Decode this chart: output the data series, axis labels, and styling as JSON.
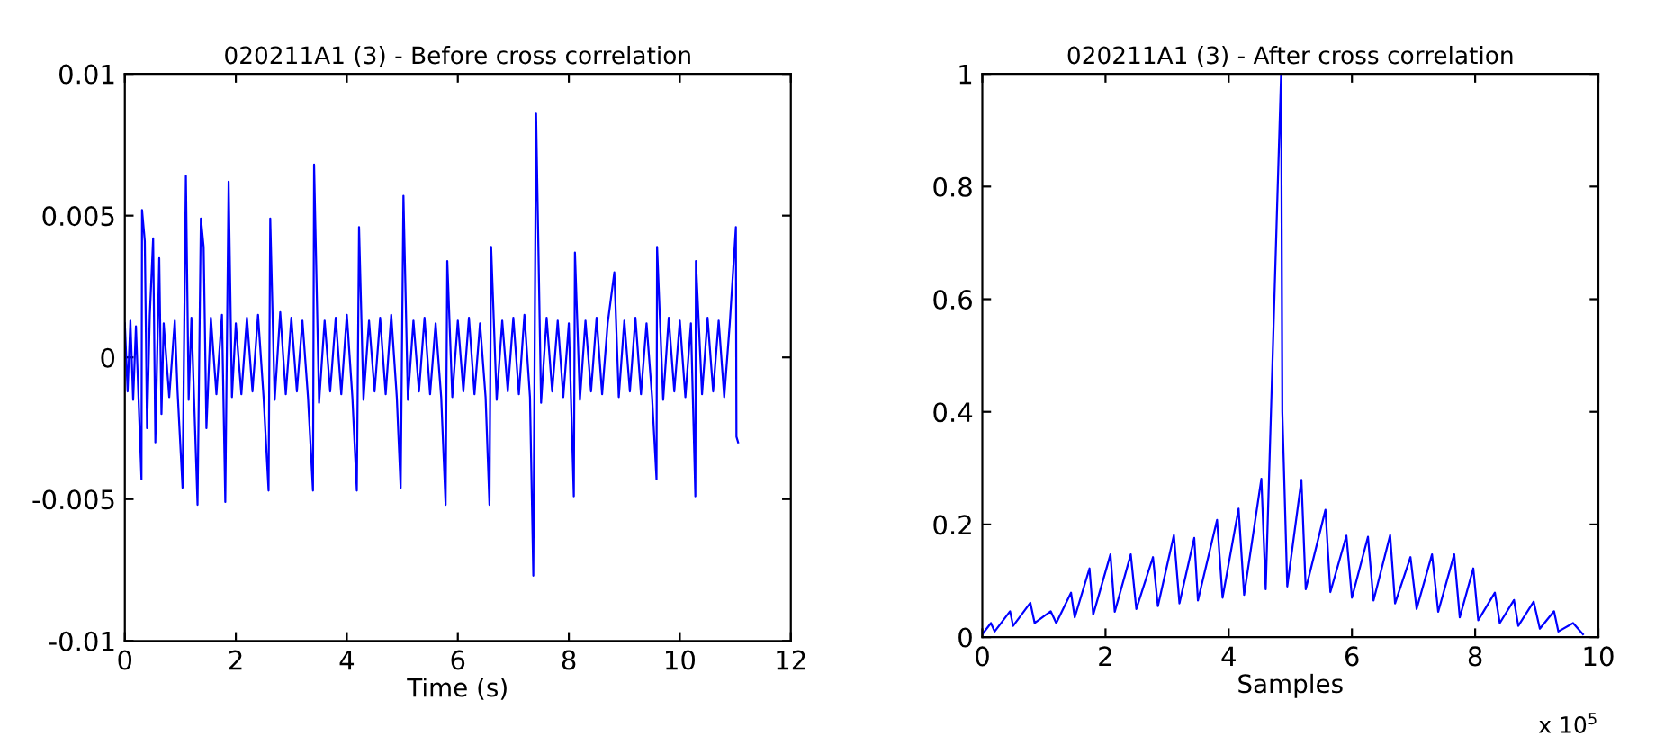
{
  "chart_data": [
    {
      "type": "line",
      "title": "020211A1 (3) - Before cross correlation",
      "xlabel": "Time (s)",
      "xlim": [
        0,
        12
      ],
      "ylim": [
        -0.01,
        0.01
      ],
      "xticks": [
        0,
        2,
        4,
        6,
        8,
        10,
        12
      ],
      "yticks": [
        -0.01,
        -0.005,
        0,
        0.005,
        0.01
      ],
      "x": [
        0,
        0.05,
        0.1,
        0.15,
        0.2,
        0.3,
        0.31,
        0.36,
        0.4,
        0.45,
        0.51,
        0.55,
        0.62,
        0.66,
        0.7,
        0.8,
        0.9,
        0.95,
        1.04,
        1.1,
        1.15,
        1.2,
        1.31,
        1.37,
        1.42,
        1.47,
        1.55,
        1.65,
        1.75,
        1.81,
        1.87,
        1.93,
        2.0,
        2.1,
        2.2,
        2.3,
        2.4,
        2.5,
        2.59,
        2.62,
        2.7,
        2.8,
        2.9,
        3.0,
        3.1,
        3.2,
        3.3,
        3.39,
        3.41,
        3.5,
        3.6,
        3.7,
        3.8,
        3.9,
        4.0,
        4.1,
        4.18,
        4.22,
        4.3,
        4.4,
        4.5,
        4.6,
        4.7,
        4.8,
        4.9,
        4.97,
        5.02,
        5.1,
        5.2,
        5.3,
        5.4,
        5.5,
        5.6,
        5.7,
        5.78,
        5.81,
        5.9,
        6.0,
        6.1,
        6.2,
        6.3,
        6.4,
        6.5,
        6.57,
        6.6,
        6.7,
        6.8,
        6.9,
        7.0,
        7.1,
        7.2,
        7.3,
        7.36,
        7.41,
        7.5,
        7.6,
        7.7,
        7.8,
        7.9,
        8.0,
        8.09,
        8.11,
        8.2,
        8.3,
        8.4,
        8.5,
        8.6,
        8.7,
        8.82,
        8.9,
        9.0,
        9.1,
        9.2,
        9.3,
        9.4,
        9.5,
        9.58,
        9.59,
        9.7,
        9.8,
        9.9,
        10.0,
        10.1,
        10.2,
        10.28,
        10.29,
        10.4,
        10.5,
        10.6,
        10.7,
        10.8,
        10.9,
        11.01,
        11.02,
        11.05
      ],
      "series": [
        {
          "color": "#0000ff",
          "values": [
            0.0012,
            -0.0012,
            0.0013,
            -0.0015,
            0.0011,
            -0.0043,
            0.0052,
            0.0041,
            -0.0025,
            0.0015,
            0.0042,
            -0.003,
            0.0035,
            -0.002,
            0.0012,
            -0.0014,
            0.0013,
            -0.0012,
            -0.0046,
            0.0064,
            -0.0015,
            0.0014,
            -0.0052,
            0.0049,
            0.0039,
            -0.0025,
            0.0014,
            -0.0013,
            0.0015,
            -0.0051,
            0.0062,
            -0.0014,
            0.0012,
            -0.0013,
            0.0014,
            -0.0012,
            0.0015,
            -0.0014,
            -0.0047,
            0.0049,
            -0.0015,
            0.0016,
            -0.0013,
            0.0014,
            -0.0012,
            0.0013,
            -0.0014,
            -0.0047,
            0.0068,
            -0.0016,
            0.0013,
            -0.0012,
            0.0014,
            -0.0013,
            0.0015,
            -0.0014,
            -0.0047,
            0.0046,
            -0.0015,
            0.0013,
            -0.0012,
            0.0014,
            -0.0013,
            0.0015,
            -0.0014,
            -0.0046,
            0.0057,
            -0.0015,
            0.0013,
            -0.0012,
            0.0014,
            -0.0013,
            0.0012,
            -0.0014,
            -0.0052,
            0.0034,
            -0.0014,
            0.0013,
            -0.0012,
            0.0014,
            -0.0013,
            0.0012,
            -0.0014,
            -0.0052,
            0.0039,
            -0.0015,
            0.0013,
            -0.0012,
            0.0014,
            -0.0013,
            0.0015,
            -0.0014,
            -0.0077,
            0.0086,
            -0.0016,
            0.0014,
            -0.0012,
            0.0013,
            -0.0014,
            0.0012,
            -0.0049,
            0.0037,
            -0.0015,
            0.0013,
            -0.0012,
            0.0014,
            -0.0013,
            0.0012,
            0.003,
            -0.0014,
            0.0013,
            -0.0012,
            0.0014,
            -0.0013,
            0.0012,
            -0.0014,
            -0.0043,
            0.0039,
            -0.0015,
            0.0014,
            -0.0012,
            0.0013,
            -0.0014,
            0.0012,
            -0.0049,
            0.0034,
            -0.0013,
            0.0014,
            -0.0012,
            0.0013,
            -0.0014,
            0.0012,
            0.0046,
            -0.0028,
            -0.003
          ]
        }
      ]
    },
    {
      "type": "line",
      "title": "020211A1 (3) - After cross correlation",
      "xlabel": "Samples",
      "annotations": [
        "x 10$^{5}$"
      ],
      "xlim": [
        0,
        10
      ],
      "ylim": [
        0,
        1
      ],
      "xticks": [
        0,
        2,
        4,
        6,
        8,
        10
      ],
      "yticks": [
        0,
        0.2,
        0.4,
        0.6,
        0.8,
        1
      ],
      "x": [
        0,
        0.14,
        0.2,
        0.45,
        0.5,
        0.78,
        0.85,
        1.11,
        1.2,
        1.44,
        1.5,
        1.74,
        1.8,
        2.08,
        2.15,
        2.41,
        2.5,
        2.77,
        2.85,
        3.11,
        3.2,
        3.44,
        3.5,
        3.81,
        3.9,
        4.16,
        4.25,
        4.53,
        4.6,
        4.85,
        4.87,
        4.95,
        5.18,
        5.25,
        5.57,
        5.65,
        5.91,
        6.0,
        6.26,
        6.35,
        6.62,
        6.7,
        6.95,
        7.05,
        7.3,
        7.4,
        7.66,
        7.75,
        7.97,
        8.05,
        8.32,
        8.4,
        8.63,
        8.7,
        8.95,
        9.05,
        9.28,
        9.35,
        9.59,
        9.75
      ],
      "series": [
        {
          "color": "#0000ff",
          "values": [
            0.005,
            0.025,
            0.01,
            0.046,
            0.02,
            0.061,
            0.025,
            0.046,
            0.025,
            0.079,
            0.035,
            0.122,
            0.04,
            0.147,
            0.045,
            0.147,
            0.05,
            0.142,
            0.055,
            0.181,
            0.06,
            0.176,
            0.065,
            0.208,
            0.07,
            0.228,
            0.075,
            0.281,
            0.085,
            1.0,
            0.4,
            0.09,
            0.279,
            0.085,
            0.226,
            0.08,
            0.18,
            0.07,
            0.178,
            0.065,
            0.181,
            0.06,
            0.142,
            0.05,
            0.147,
            0.045,
            0.147,
            0.035,
            0.122,
            0.03,
            0.079,
            0.025,
            0.066,
            0.02,
            0.063,
            0.015,
            0.046,
            0.01,
            0.025,
            0.005
          ]
        }
      ]
    }
  ]
}
